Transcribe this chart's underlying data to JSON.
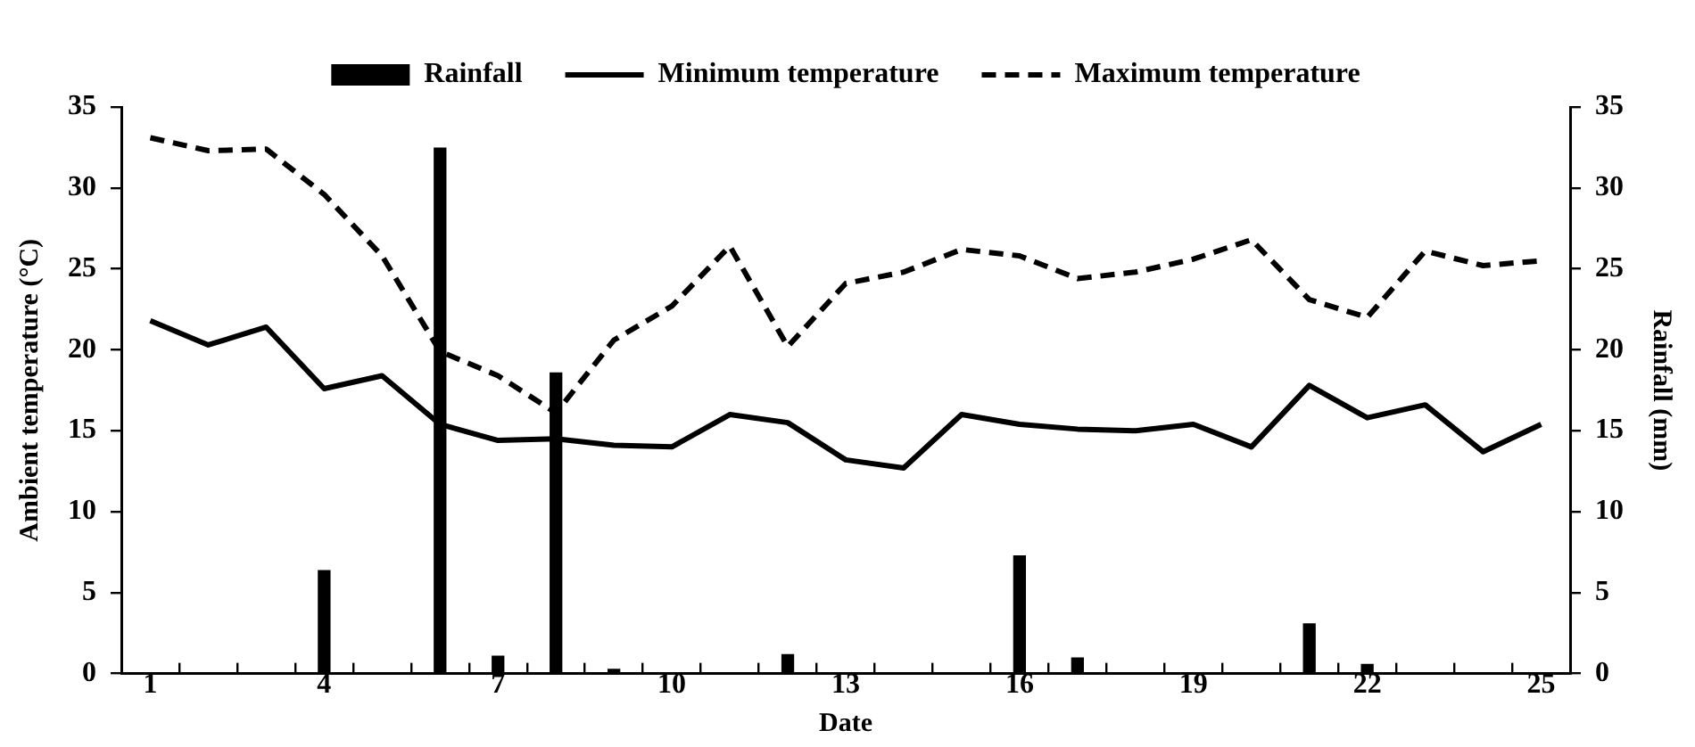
{
  "chart_data": {
    "type": "line",
    "xlabel": "Date",
    "ylabel": "Ambient temperature (°C)",
    "y2label": "Rainfall (mm)",
    "categories": [
      "1",
      null,
      null,
      "4",
      null,
      null,
      "7",
      null,
      null,
      "10",
      null,
      null,
      "13",
      null,
      null,
      "16",
      null,
      null,
      "19",
      null,
      null,
      "22",
      null,
      null,
      "25"
    ],
    "series": [
      {
        "name": "Rainfall",
        "type": "bar",
        "axis": "y2",
        "color": "#000000",
        "values": [
          0,
          0,
          0,
          6.4,
          0,
          32.5,
          1.1,
          18.6,
          0.3,
          0,
          0,
          1.2,
          0,
          0,
          0,
          7.3,
          1.0,
          0,
          0,
          0,
          3.1,
          0.6,
          0,
          0,
          0
        ]
      },
      {
        "name": "Minimum temperature",
        "line_style": "solid",
        "color": "#000000",
        "values": [
          21.8,
          20.3,
          21.4,
          17.6,
          18.4,
          15.4,
          14.4,
          14.5,
          14.1,
          14.0,
          16.0,
          15.5,
          13.2,
          12.7,
          16.0,
          15.4,
          15.1,
          15.0,
          15.4,
          14.0,
          17.8,
          15.8,
          16.6,
          13.7,
          15.4
        ]
      },
      {
        "name": "Maximum temperature",
        "line_style": "dashed",
        "color": "#000000",
        "values": [
          33.1,
          32.3,
          32.4,
          29.6,
          25.8,
          19.9,
          18.4,
          16.1,
          20.6,
          22.7,
          26.4,
          20.2,
          24.1,
          24.8,
          26.2,
          25.8,
          24.4,
          24.8,
          25.6,
          26.8,
          23.1,
          22.0,
          26.1,
          25.2,
          25.5
        ]
      }
    ],
    "ylim": [
      0,
      35
    ],
    "yticks": [
      0,
      5,
      10,
      15,
      20,
      25,
      30,
      35
    ],
    "y2lim": [
      0,
      35
    ],
    "y2ticks": [
      0,
      5,
      10,
      15,
      20,
      25,
      30,
      35
    ],
    "grid": false,
    "legend": "top",
    "marker": "none"
  }
}
